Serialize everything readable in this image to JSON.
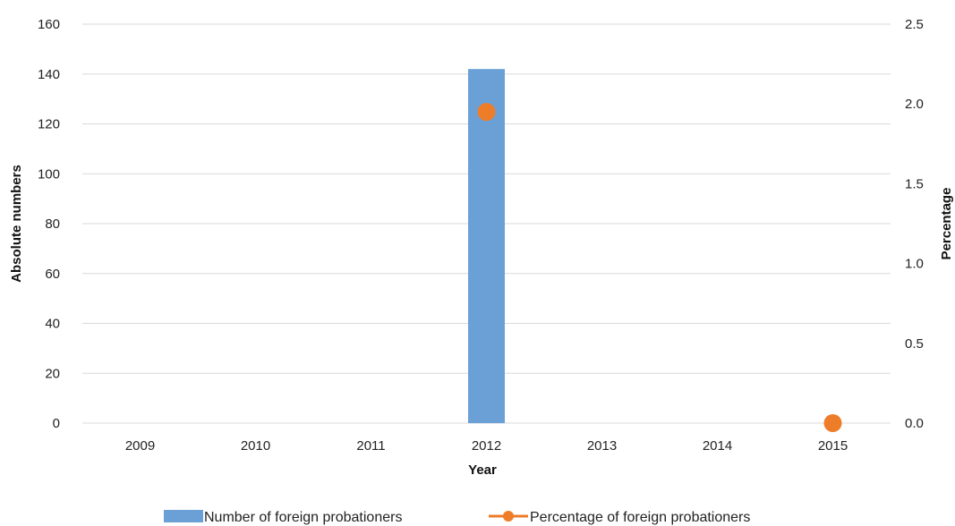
{
  "chart_data": {
    "type": "bar",
    "categories": [
      "2009",
      "2010",
      "2011",
      "2012",
      "2013",
      "2014",
      "2015"
    ],
    "series": [
      {
        "name": "Number of foreign probationers",
        "kind": "bar",
        "axis": "left",
        "color": "#6aa0d6",
        "values": [
          null,
          null,
          null,
          142,
          null,
          null,
          null
        ]
      },
      {
        "name": "Percentage of foreign probationers",
        "kind": "line-marker",
        "axis": "right",
        "color": "#ee7d2a",
        "values": [
          null,
          null,
          null,
          1.95,
          null,
          null,
          0.0
        ]
      }
    ],
    "xlabel": "Year",
    "ylabel": "Absolute numbers",
    "y2label": "Percentage",
    "ylim": [
      0,
      160
    ],
    "y2lim": [
      0,
      2.5
    ],
    "yticks": [
      "0",
      "20",
      "40",
      "60",
      "80",
      "100",
      "120",
      "140",
      "160"
    ],
    "y2ticks": [
      "0.0",
      "0.5",
      "1.0",
      "1.5",
      "2.0",
      "2.5"
    ],
    "grid": true,
    "legend_position": "bottom"
  }
}
